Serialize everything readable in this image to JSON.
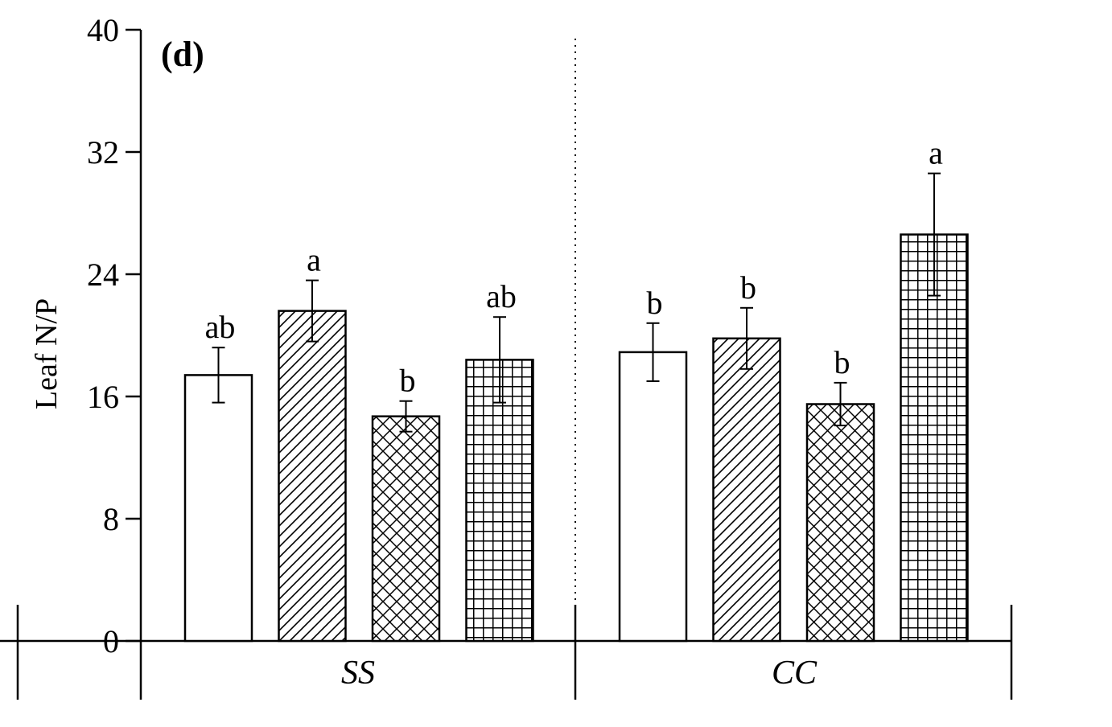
{
  "chart_data": {
    "type": "bar",
    "panel_label": "(d)",
    "ylabel": "Leaf N/P",
    "xlabel": "",
    "ylim": [
      0,
      40
    ],
    "yticks": [
      0,
      8,
      16,
      24,
      32,
      40
    ],
    "grid": false,
    "legend": "none",
    "groups": [
      {
        "name": "SS",
        "bars": [
          {
            "pattern": "open",
            "value": 17.4,
            "error": 1.8,
            "letter": "ab"
          },
          {
            "pattern": "diagonal",
            "value": 21.6,
            "error": 2.0,
            "letter": "a"
          },
          {
            "pattern": "crosshatch",
            "value": 14.7,
            "error": 1.0,
            "letter": "b"
          },
          {
            "pattern": "grid",
            "value": 18.4,
            "error": 2.8,
            "letter": "ab"
          }
        ]
      },
      {
        "name": "CC",
        "bars": [
          {
            "pattern": "open",
            "value": 18.9,
            "error": 1.9,
            "letter": "b"
          },
          {
            "pattern": "diagonal",
            "value": 19.8,
            "error": 2.0,
            "letter": "b"
          },
          {
            "pattern": "crosshatch",
            "value": 15.5,
            "error": 1.4,
            "letter": "b"
          },
          {
            "pattern": "grid",
            "value": 26.6,
            "error": 4.0,
            "letter": "a"
          }
        ]
      }
    ]
  }
}
